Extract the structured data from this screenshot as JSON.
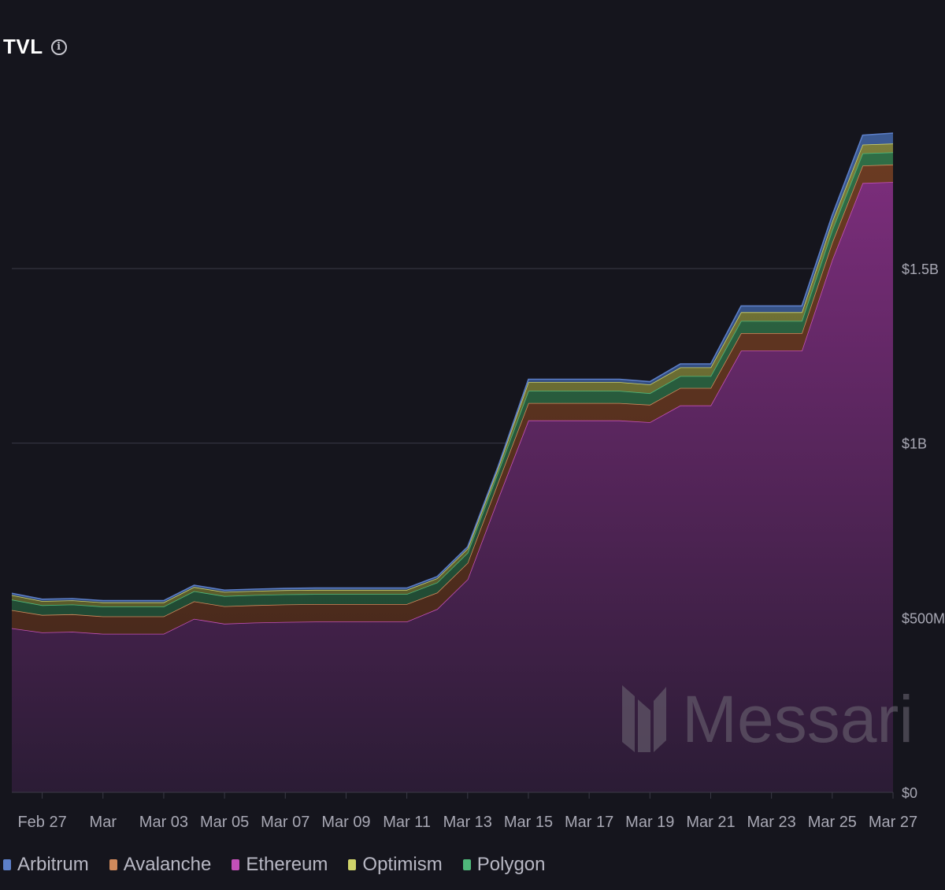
{
  "header": {
    "title": "TVL",
    "info_icon": "info-icon"
  },
  "watermark": {
    "text": "Messari",
    "icon": "messari-logo-icon"
  },
  "chart_data": {
    "type": "area",
    "stacked": true,
    "x": [
      "Feb 26",
      "Feb 27",
      "Feb 28",
      "Mar 01",
      "Mar 02",
      "Mar 03",
      "Mar 04",
      "Mar 05",
      "Mar 06",
      "Mar 07",
      "Mar 08",
      "Mar 09",
      "Mar 10",
      "Mar 11",
      "Mar 12",
      "Mar 13",
      "Mar 14",
      "Mar 15",
      "Mar 16",
      "Mar 17",
      "Mar 18",
      "Mar 19",
      "Mar 20",
      "Mar 21",
      "Mar 22",
      "Mar 23",
      "Mar 24",
      "Mar 25",
      "Mar 26",
      "Mar 27"
    ],
    "x_tick_labels": [
      "Feb 27",
      "Mar",
      "Mar 03",
      "Mar 05",
      "Mar 07",
      "Mar 09",
      "Mar 11",
      "Mar 13",
      "Mar 15",
      "Mar 17",
      "Mar 19",
      "Mar 21",
      "Mar 23",
      "Mar 25",
      "Mar 27"
    ],
    "y_ticks": [
      0,
      500000000,
      1000000000,
      1500000000
    ],
    "y_tick_labels": [
      "$0",
      "$500M",
      "$1B",
      "$1.5B"
    ],
    "ylim": [
      0,
      1900000000
    ],
    "grid": true,
    "legend_position": "bottom-left",
    "series": [
      {
        "name": "Ethereum",
        "color": "#c350b8",
        "values": [
          470000000,
          458000000,
          460000000,
          454000000,
          454000000,
          454000000,
          497000000,
          483000000,
          486000000,
          488000000,
          489000000,
          489000000,
          489000000,
          489000000,
          525000000,
          610000000,
          840000000,
          1065000000,
          1065000000,
          1065000000,
          1065000000,
          1060000000,
          1108000000,
          1108000000,
          1265000000,
          1265000000,
          1265000000,
          1525000000,
          1745000000,
          1748000000
        ]
      },
      {
        "name": "Avalanche",
        "color": "#d08a5c",
        "values": [
          52000000,
          50000000,
          50000000,
          50000000,
          50000000,
          50000000,
          50000000,
          50000000,
          50000000,
          50000000,
          50000000,
          50000000,
          50000000,
          50000000,
          47000000,
          47000000,
          47000000,
          50000000,
          50000000,
          50000000,
          50000000,
          50000000,
          50000000,
          50000000,
          50000000,
          50000000,
          50000000,
          50000000,
          50000000,
          50000000
        ]
      },
      {
        "name": "Polygon",
        "color": "#4fb87a",
        "values": [
          30000000,
          28000000,
          28000000,
          28000000,
          28000000,
          28000000,
          29000000,
          29000000,
          29000000,
          29000000,
          29000000,
          29000000,
          29000000,
          29000000,
          29000000,
          29000000,
          29000000,
          35000000,
          35000000,
          35000000,
          35000000,
          33000000,
          34000000,
          34000000,
          35000000,
          35000000,
          35000000,
          35000000,
          35000000,
          35000000
        ]
      },
      {
        "name": "Optimism",
        "color": "#cfd36a",
        "values": [
          13000000,
          12000000,
          12000000,
          12000000,
          12000000,
          12000000,
          12000000,
          12000000,
          12000000,
          12000000,
          12000000,
          12000000,
          12000000,
          12000000,
          12000000,
          12000000,
          12000000,
          25000000,
          25000000,
          25000000,
          25000000,
          25000000,
          25000000,
          25000000,
          25000000,
          25000000,
          25000000,
          25000000,
          25000000,
          25000000
        ]
      },
      {
        "name": "Arbitrum",
        "color": "#5c7fc8",
        "values": [
          5000000,
          5000000,
          5000000,
          5000000,
          5000000,
          5000000,
          5000000,
          5000000,
          5000000,
          5000000,
          5000000,
          5000000,
          5000000,
          5000000,
          5000000,
          5000000,
          5000000,
          8000000,
          8000000,
          8000000,
          8000000,
          8000000,
          10000000,
          10000000,
          18000000,
          18000000,
          18000000,
          18000000,
          27000000,
          30000000
        ]
      }
    ]
  },
  "legend": {
    "items": [
      {
        "name": "Arbitrum",
        "color": "#5c7fc8"
      },
      {
        "name": "Avalanche",
        "color": "#d08a5c"
      },
      {
        "name": "Ethereum",
        "color": "#c350b8"
      },
      {
        "name": "Optimism",
        "color": "#cfd36a"
      },
      {
        "name": "Polygon",
        "color": "#4fb87a"
      }
    ]
  }
}
